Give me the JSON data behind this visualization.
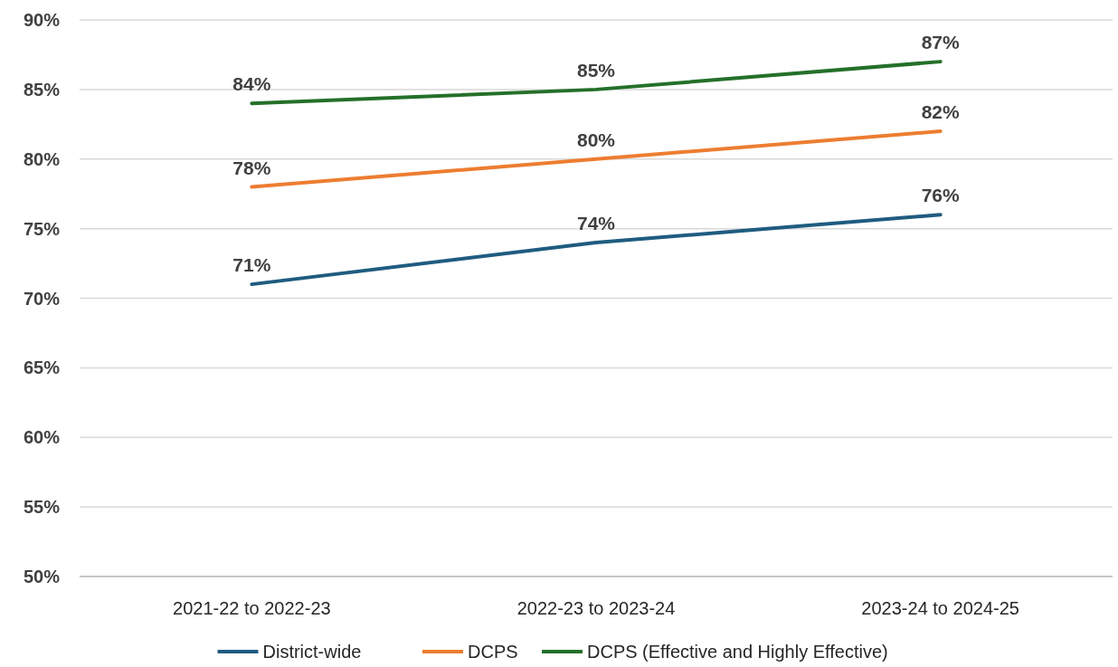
{
  "chart_data": {
    "type": "line",
    "categories": [
      "2021-22 to 2022-23",
      "2022-23 to 2023-24",
      "2023-24 to 2024-25"
    ],
    "series": [
      {
        "name": "District-wide",
        "color": "#1f5c80",
        "values": [
          71,
          74,
          76
        ],
        "value_labels": [
          "71%",
          "74%",
          "76%"
        ]
      },
      {
        "name": "DCPS",
        "color": "#ed7d31",
        "values": [
          78,
          80,
          82
        ],
        "value_labels": [
          "78%",
          "80%",
          "82%"
        ]
      },
      {
        "name": "DCPS (Effective and Highly Effective)",
        "color": "#24702a",
        "values": [
          84,
          85,
          87
        ],
        "value_labels": [
          "84%",
          "85%",
          "87%"
        ]
      }
    ],
    "ylim": [
      50,
      90
    ],
    "yticks": [
      {
        "value": 50,
        "label": "50%"
      },
      {
        "value": 55,
        "label": "55%"
      },
      {
        "value": 60,
        "label": "60%"
      },
      {
        "value": 65,
        "label": "65%"
      },
      {
        "value": 70,
        "label": "70%"
      },
      {
        "value": 75,
        "label": "75%"
      },
      {
        "value": 80,
        "label": "80%"
      },
      {
        "value": 85,
        "label": "85%"
      },
      {
        "value": 90,
        "label": "90%"
      }
    ],
    "grid": "y",
    "legend": "bottom",
    "marker": "none",
    "line_style": "solid"
  }
}
